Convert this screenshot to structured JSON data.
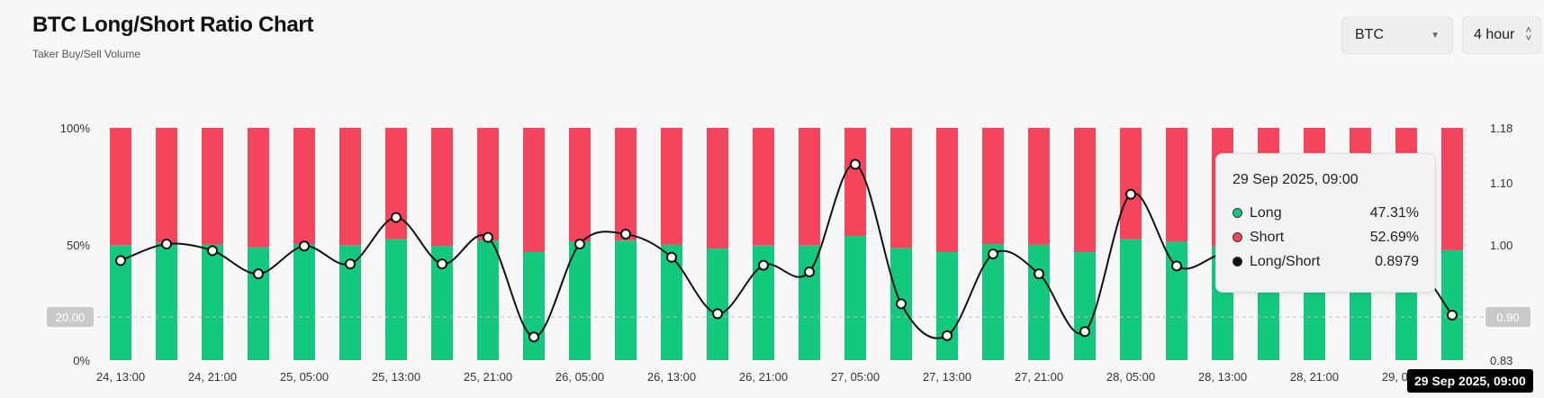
{
  "header": {
    "title": "BTC Long/Short Ratio Chart",
    "subtitle": "Taker Buy/Sell Volume"
  },
  "controls": {
    "coin": "BTC",
    "interval": "4 hour"
  },
  "colors": {
    "long": "#12c97e",
    "short": "#f5455c",
    "ratio_line": "#111111",
    "background": "#f7f7f7"
  },
  "chart_data": {
    "type": "bar",
    "categories": [
      "24, 13:00",
      "",
      "24, 21:00",
      "",
      "25, 05:00",
      "",
      "25, 13:00",
      "",
      "25, 21:00",
      "",
      "26, 05:00",
      "",
      "26, 13:00",
      "",
      "26, 21:00",
      "",
      "27, 05:00",
      "",
      "27, 13:00",
      "",
      "27, 21:00",
      "",
      "28, 05:00",
      "",
      "28, 13:00",
      "",
      "28, 21:00",
      "",
      "29, 05:00",
      ""
    ],
    "series": [
      {
        "name": "Long",
        "values": [
          49.5,
          50.5,
          49.8,
          48.5,
          50.0,
          49.5,
          52.0,
          49.2,
          51.5,
          46.5,
          51.0,
          51.5,
          49.8,
          48.0,
          49.5,
          49.5,
          53.5,
          48.2,
          46.5,
          50.0,
          49.8,
          46.5,
          52.0,
          51.0,
          49.0,
          48.5,
          49.0,
          48.5,
          49.2,
          47.31
        ]
      },
      {
        "name": "Short",
        "values": [
          50.5,
          49.5,
          50.2,
          51.5,
          50.0,
          50.5,
          48.0,
          50.8,
          48.5,
          53.5,
          49.0,
          48.5,
          50.2,
          52.0,
          50.5,
          50.5,
          46.5,
          51.8,
          53.5,
          50.0,
          50.2,
          53.5,
          48.0,
          49.0,
          51.0,
          51.5,
          51.0,
          51.5,
          50.8,
          52.69
        ]
      },
      {
        "name": "Long/Short",
        "values": [
          0.98,
          1.005,
          0.995,
          0.96,
          1.002,
          0.975,
          1.045,
          0.975,
          1.015,
          0.865,
          1.005,
          1.02,
          0.985,
          0.9,
          0.973,
          0.963,
          1.125,
          0.915,
          0.867,
          0.99,
          0.96,
          0.873,
          1.08,
          0.972,
          0.99,
          0.99,
          0.99,
          0.99,
          0.99,
          0.8979
        ]
      }
    ],
    "left_axis": {
      "ticks": [
        "100%",
        "50%",
        "0%"
      ],
      "range": [
        0,
        100
      ]
    },
    "right_axis": {
      "ticks": [
        "1.18",
        "1.10",
        "1.00",
        "0.83"
      ],
      "range": [
        0.83,
        1.18
      ]
    },
    "left_marker": "20.00",
    "right_marker": "0.90",
    "tooltip": {
      "title": "29 Sep 2025, 09:00",
      "rows": [
        {
          "label": "Long",
          "value": "47.31%"
        },
        {
          "label": "Short",
          "value": "52.69%"
        },
        {
          "label": "Long/Short",
          "value": "0.8979"
        }
      ]
    },
    "hover_time": "29 Sep 2025, 09:00",
    "grid": false
  }
}
